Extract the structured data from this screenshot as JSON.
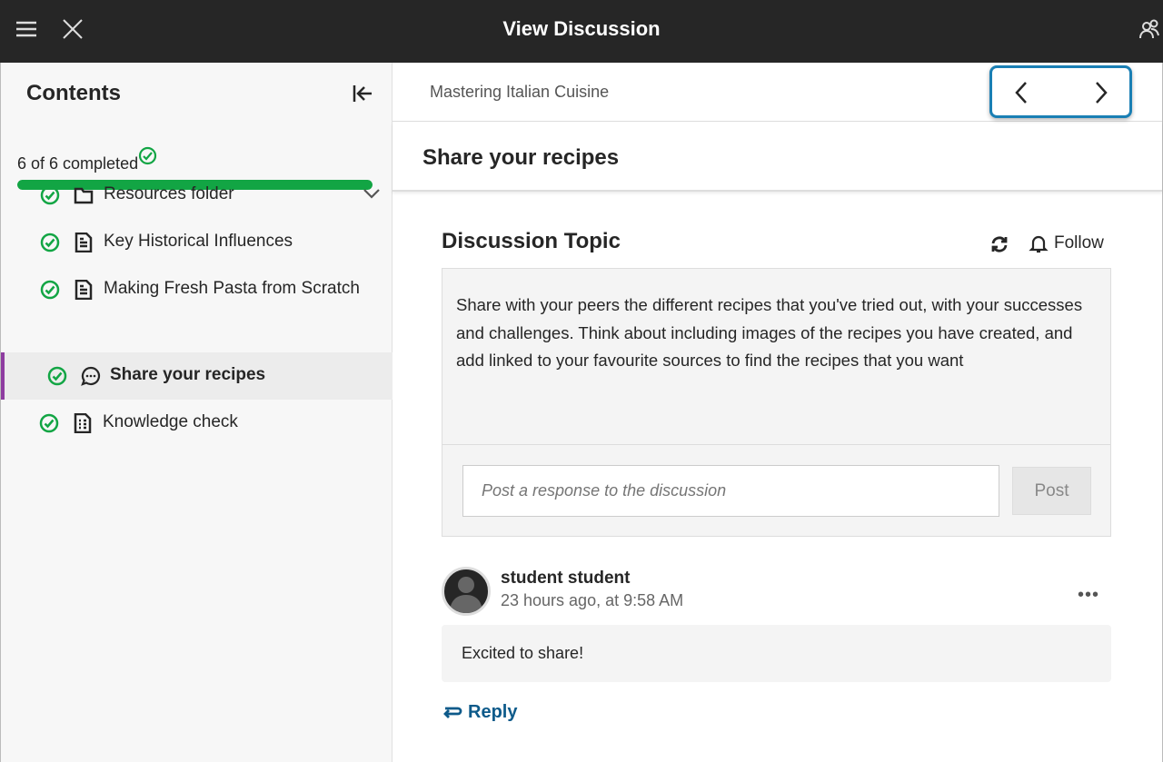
{
  "header": {
    "title": "View Discussion",
    "menu_icon": "hamburger-icon",
    "close_icon": "close-icon",
    "people_icon": "people-icon"
  },
  "sidebar": {
    "title": "Contents",
    "progress_text": "6 of 6 completed",
    "progress_percent": 100,
    "progress_color": "#12a544",
    "items": [
      {
        "label": "Resources folder",
        "icon": "folder-icon",
        "completed": true,
        "expandable": true
      },
      {
        "label": "Key Historical Influences",
        "icon": "document-icon",
        "completed": true
      },
      {
        "label": "Making Fresh Pasta from Scratch",
        "icon": "document-icon",
        "completed": true
      },
      {
        "label": "Share your recipes",
        "icon": "discussion-icon",
        "completed": true,
        "selected": true
      },
      {
        "label": "Knowledge check",
        "icon": "test-icon",
        "completed": true
      }
    ]
  },
  "main": {
    "breadcrumb": "Mastering Italian Cuisine",
    "page_title": "Share your recipes",
    "topic": {
      "heading": "Discussion Topic",
      "follow_label": "Follow",
      "body": "Share with your peers the different recipes that you've tried out, with your successes and challenges. Think about including images of the recipes you have created, and add linked to your favourite sources to find the recipes that you want"
    },
    "response": {
      "placeholder": "Post a response to the discussion",
      "value": "",
      "post_label": "Post"
    },
    "post": {
      "author": "student student",
      "time": "23 hours ago, at 9:58 AM",
      "message": "Excited to share!",
      "reply_label": "Reply"
    }
  },
  "colors": {
    "header": "#262626",
    "accent": "#1a7fb4",
    "selected": "#8e3ca0",
    "link": "#0d5a8a"
  }
}
